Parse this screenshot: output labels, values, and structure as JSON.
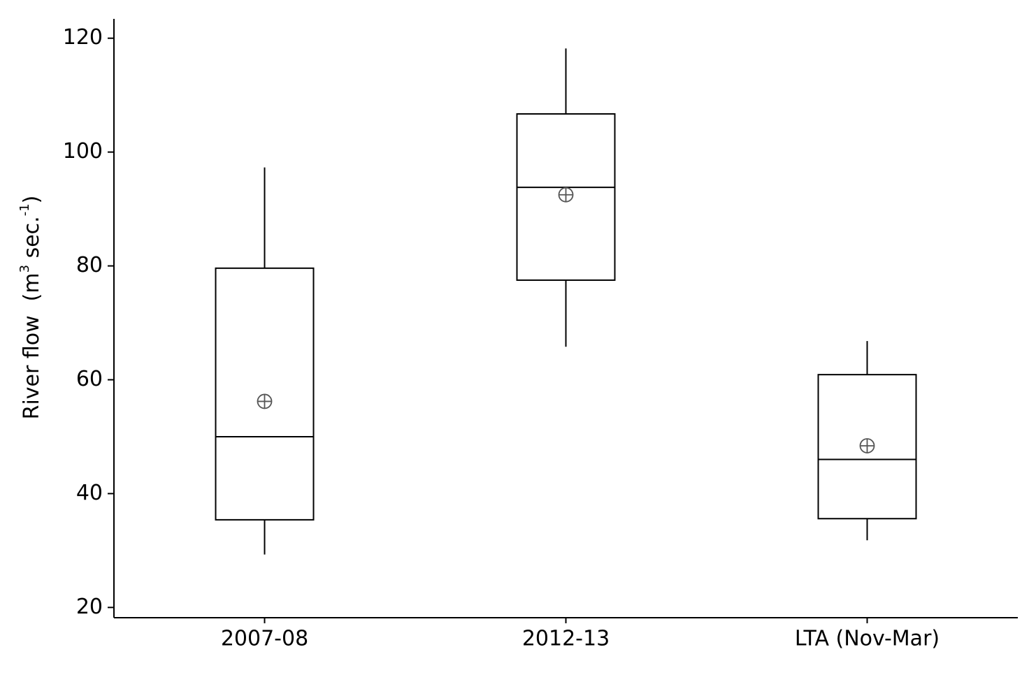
{
  "chart_data": {
    "type": "box",
    "y_label": {
      "text": "River flow",
      "unit": [
        "(m",
        "3",
        " sec.",
        "-1",
        ")"
      ]
    },
    "categories": [
      "2007-08",
      "2012-13",
      "LTA (Nov-Mar)"
    ],
    "boxes": [
      {
        "min": 29.3,
        "q1": 35.4,
        "median": 50.0,
        "q3": 79.6,
        "max": 97.3,
        "mean": 56.2
      },
      {
        "min": 65.8,
        "q1": 77.5,
        "median": 93.8,
        "q3": 106.7,
        "max": 118.2,
        "mean": 92.5
      },
      {
        "min": 31.8,
        "q1": 35.6,
        "median": 46.0,
        "q3": 60.9,
        "max": 66.8,
        "mean": 48.4
      }
    ],
    "color": "#000000",
    "mean_color": "#555555",
    "ylim": [
      18.2,
      123.4
    ],
    "yticks": [
      20,
      40,
      60,
      80,
      100,
      120
    ],
    "grid": false
  }
}
